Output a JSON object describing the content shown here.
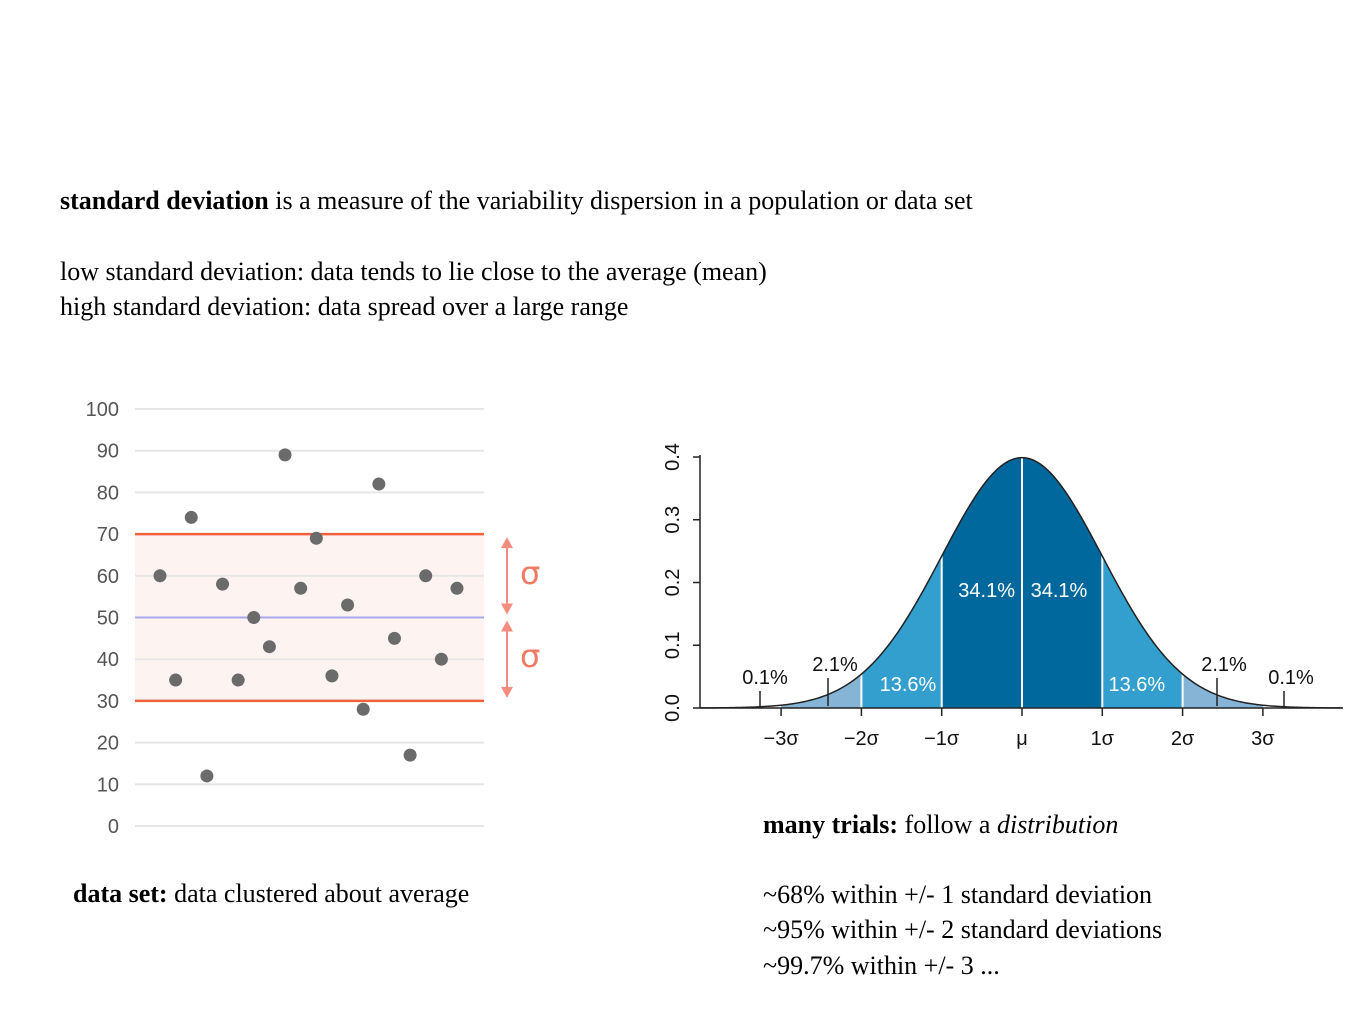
{
  "intro": {
    "term": "standard deviation",
    "definition": " is a measure of the variability dispersion in a population or data set",
    "low": "low standard deviation: data tends to lie close to the average (mean)",
    "high": "high standard deviation: data spread over a large range"
  },
  "left_caption": {
    "term": "data set:",
    "text": " data clustered about average"
  },
  "right_caption": {
    "term": "many trials:",
    "text": " follow a ",
    "italic": "distribution",
    "lines": [
      "~68% within +/- 1 standard deviation",
      "~95% within +/- 2 standard deviations",
      "~99.7% within +/- 3 ..."
    ]
  },
  "colors": {
    "dot": "#6b6b6b",
    "band_line": "#f0603c",
    "mean_line": "#a9a9ef",
    "band_fill": "#fdf4f2",
    "arrow": "#f48c80",
    "dark_blue": "#00689d",
    "mid_blue": "#339fcf",
    "light_blue": "#86b4d6"
  },
  "chart_data": [
    {
      "type": "scatter",
      "title": "",
      "xlabel": "",
      "ylabel": "",
      "ylim": [
        0,
        100
      ],
      "yticks": [
        "100",
        "90",
        "80",
        "70",
        "60",
        "50",
        "40",
        "30",
        "20",
        "10",
        "0"
      ],
      "grid": true,
      "mean": 50,
      "band": [
        30,
        70
      ],
      "sigma_label": "σ",
      "points": [
        {
          "x": 1,
          "y": 60
        },
        {
          "x": 2,
          "y": 35
        },
        {
          "x": 3,
          "y": 74
        },
        {
          "x": 4,
          "y": 12
        },
        {
          "x": 5,
          "y": 58
        },
        {
          "x": 6,
          "y": 35
        },
        {
          "x": 7,
          "y": 50
        },
        {
          "x": 8,
          "y": 43
        },
        {
          "x": 9,
          "y": 89
        },
        {
          "x": 10,
          "y": 57
        },
        {
          "x": 11,
          "y": 69
        },
        {
          "x": 12,
          "y": 36
        },
        {
          "x": 13,
          "y": 53
        },
        {
          "x": 14,
          "y": 28
        },
        {
          "x": 15,
          "y": 82
        },
        {
          "x": 16,
          "y": 45
        },
        {
          "x": 17,
          "y": 17
        },
        {
          "x": 18,
          "y": 60
        },
        {
          "x": 19,
          "y": 40
        },
        {
          "x": 20,
          "y": 57
        }
      ]
    },
    {
      "type": "area",
      "title": "",
      "xlabel": "",
      "ylabel": "",
      "ylim": [
        0,
        0.4
      ],
      "xlim": [
        -4,
        4
      ],
      "xticks": [
        "−3σ",
        "−2σ",
        "−1σ",
        "μ",
        "1σ",
        "2σ",
        "3σ"
      ],
      "yticks": [
        "0.0",
        "0.1",
        "0.2",
        "0.3",
        "0.4"
      ],
      "curve": "standard normal density",
      "regions": [
        {
          "from": -3,
          "to": -2,
          "percent": "2.1%"
        },
        {
          "from": -2,
          "to": -1,
          "percent": "13.6%"
        },
        {
          "from": -1,
          "to": 0,
          "percent": "34.1%"
        },
        {
          "from": 0,
          "to": 1,
          "percent": "34.1%"
        },
        {
          "from": 1,
          "to": 2,
          "percent": "13.6%"
        },
        {
          "from": 2,
          "to": 3,
          "percent": "2.1%"
        }
      ],
      "tails": [
        "0.1%",
        "0.1%"
      ]
    }
  ]
}
